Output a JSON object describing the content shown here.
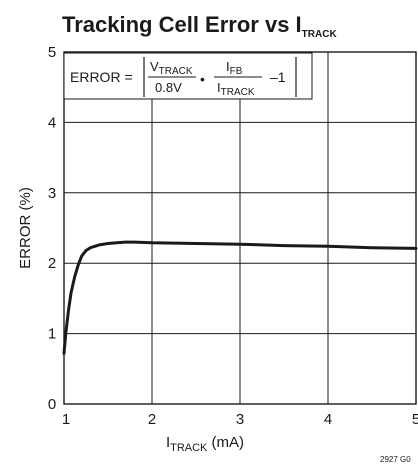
{
  "chart_data": {
    "type": "line",
    "title": "Tracking Cell Error vs I",
    "title_sub": "TRACK",
    "xlabel": "I",
    "xlabel_sub": "TRACK",
    "xlabel_unit": " (mA)",
    "ylabel": "ERROR (%)",
    "xlim": [
      1,
      5
    ],
    "ylim": [
      0,
      5
    ],
    "x_ticks": [
      1,
      2,
      3,
      4,
      5
    ],
    "y_ticks": [
      0,
      1,
      2,
      3,
      4,
      5
    ],
    "grid": true,
    "series": [
      {
        "x": [
          1.0,
          1.02,
          1.05,
          1.08,
          1.12,
          1.16,
          1.2,
          1.25,
          1.3,
          1.4,
          1.5,
          1.6,
          1.7,
          1.8,
          2.0,
          2.5,
          3.0,
          3.5,
          4.0,
          4.5,
          5.0
        ],
        "y": [
          0.72,
          1.0,
          1.32,
          1.58,
          1.8,
          1.97,
          2.1,
          2.18,
          2.22,
          2.26,
          2.28,
          2.29,
          2.3,
          2.3,
          2.29,
          2.28,
          2.27,
          2.25,
          2.24,
          2.22,
          2.21
        ]
      }
    ],
    "annotation": {
      "prefix": "ERROR = ",
      "num1_main": "V",
      "num1_sub": "TRACK",
      "den1": "0.8V",
      "dot": "•",
      "num2_main": "I",
      "num2_sub": "FB",
      "den2_main": "I",
      "den2_sub": "TRACK",
      "suffix": "–1"
    },
    "figure_code": "2927 G0"
  }
}
